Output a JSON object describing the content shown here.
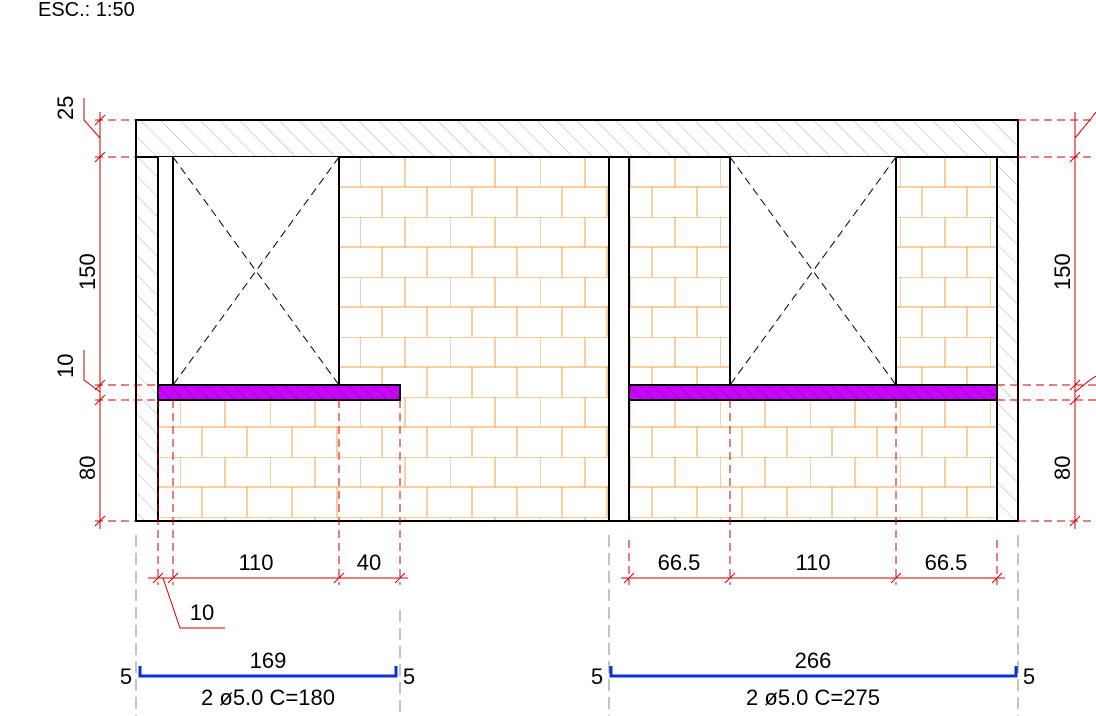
{
  "scale_label": "ESC.: 1:50",
  "left_dims": {
    "top_band": "25",
    "window_height": "150",
    "sill": "10",
    "bottom": "80"
  },
  "right_dims": {
    "window_height": "150",
    "bottom": "80"
  },
  "window1": {
    "dim_opening": "110",
    "dim_extension": "40",
    "dim_offset": "10"
  },
  "window2": {
    "dim_left": "66.5",
    "dim_opening": "110",
    "dim_right": "66.5"
  },
  "rebar1": {
    "length": "169",
    "hook_left": "5",
    "hook_right": "5",
    "spec": "2 ø5.0 C=180"
  },
  "rebar2": {
    "length": "266",
    "hook_left": "5",
    "hook_right": "5",
    "spec": "2 ø5.0 C=275"
  },
  "colors": {
    "brick": "#f0a040",
    "dimension": "#cc0000",
    "lintel": "#cc00ff",
    "rebar": "#1030d0",
    "outline": "#000000"
  }
}
